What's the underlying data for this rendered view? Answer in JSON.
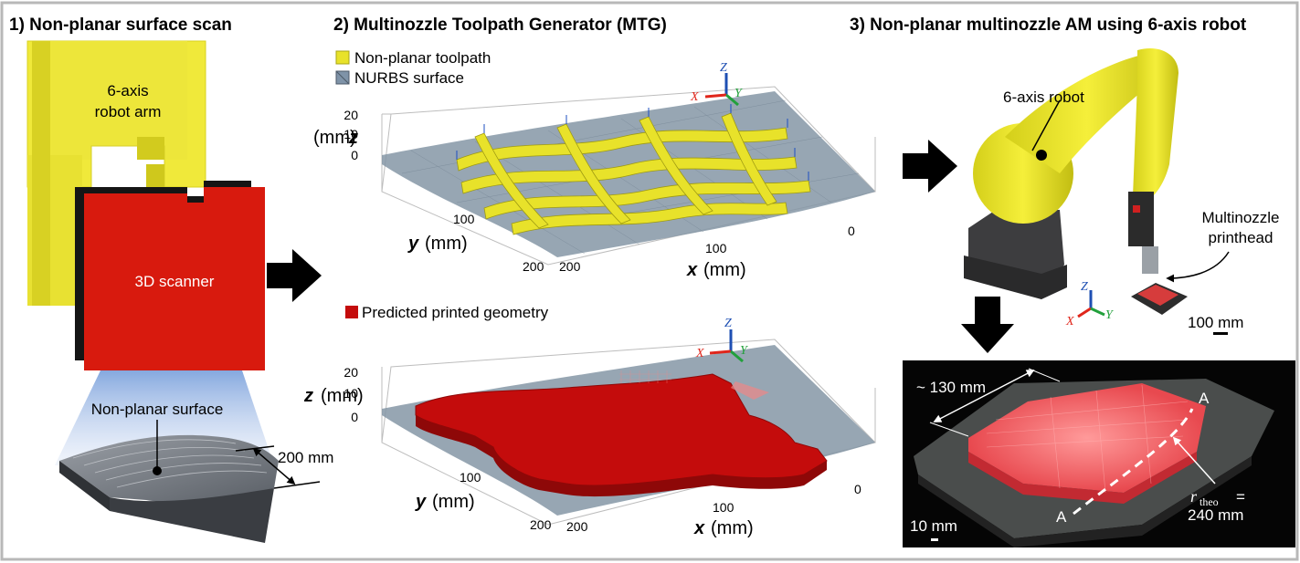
{
  "panels": {
    "panel1": {
      "title": "1) Non-planar surface scan",
      "robot_label_line1": "6-axis",
      "robot_label_line2": "robot arm",
      "scanner_label": "3D scanner",
      "surface_label": "Non-planar surface",
      "dimension": "200 mm"
    },
    "panel2": {
      "title": "2) Multinozzle Toolpath Generator (MTG)",
      "legend_toolpath": "Non-planar toolpath",
      "legend_nurbs": "NURBS surface",
      "legend_predicted": "Predicted printed geometry",
      "z_axis_var": "z",
      "y_axis_var": "y",
      "x_axis_var": "x",
      "axis_unit": "(mm)",
      "z_ticks": [
        "20",
        "10",
        "0"
      ],
      "y_ticks": [
        "100",
        "200"
      ],
      "x_ticks": [
        "200",
        "100",
        "0"
      ],
      "triad": {
        "x": "X",
        "y": "Y",
        "z": "Z"
      }
    },
    "panel3": {
      "title": "3) Non-planar multinozzle AM using 6-axis robot",
      "robot_label": "6-axis robot",
      "printhead_line1": "Multinozzle",
      "printhead_line2": "printhead",
      "scale_robot": "100 mm",
      "photo_dimension": "~ 130 mm",
      "section_label": "A",
      "r_symbol": "r",
      "r_subscript": "theo",
      "r_value": "240 mm",
      "r_equals": "=",
      "scale_photo": "10 mm",
      "triad": {
        "x": "X",
        "y": "Y",
        "z": "Z"
      }
    }
  },
  "colors": {
    "robot_yellow": "#f2ea2a",
    "scanner_red": "#d81a0e",
    "printed_red": "#c40c0c",
    "toolpath_yellow": "#e8e22a",
    "nurbs_gray": "#8596a6",
    "axis_x": "#e0261b",
    "axis_y": "#22a03c",
    "axis_z": "#1e4fb3"
  }
}
